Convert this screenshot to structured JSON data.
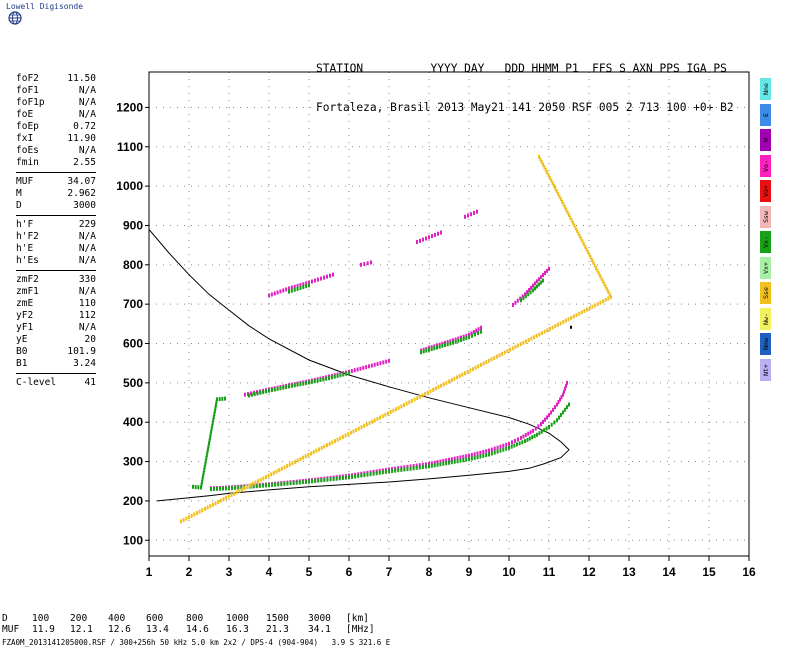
{
  "brand": {
    "name": "Lowell Digisonde",
    "icon": "globe-icon"
  },
  "header": {
    "line1": "STATION          YYYY DAY   DDD HHMM P1  FFS S AXN PPS IGA PS",
    "line2": "Fortaleza, Brasil 2013 May21 141 2050 RSF 005 2 713 100 +0+ B2"
  },
  "params": [
    {
      "label": "foF2",
      "value": "11.50"
    },
    {
      "label": "foF1",
      "value": "N/A"
    },
    {
      "label": "foF1p",
      "value": "N/A"
    },
    {
      "label": "foE",
      "value": "N/A"
    },
    {
      "label": "foEp",
      "value": "0.72"
    },
    {
      "label": "fxI",
      "value": "11.90"
    },
    {
      "label": "foEs",
      "value": "N/A"
    },
    {
      "label": "fmin",
      "value": "2.55"
    },
    {
      "sep": true
    },
    {
      "label": "MUF",
      "value": "34.07"
    },
    {
      "label": "M",
      "value": "2.962"
    },
    {
      "label": "D",
      "value": "3000"
    },
    {
      "sep": true
    },
    {
      "label": "h'F",
      "value": "229"
    },
    {
      "label": "h'F2",
      "value": "N/A"
    },
    {
      "label": "h'E",
      "value": "N/A"
    },
    {
      "label": "h'Es",
      "value": "N/A"
    },
    {
      "sep": true
    },
    {
      "label": "zmF2",
      "value": "330"
    },
    {
      "label": "zmF1",
      "value": "N/A"
    },
    {
      "label": "zmE",
      "value": "110"
    },
    {
      "label": "yF2",
      "value": "112"
    },
    {
      "label": "yF1",
      "value": "N/A"
    },
    {
      "label": "yE",
      "value": "20"
    },
    {
      "label": "B0",
      "value": "101.9"
    },
    {
      "label": "B1",
      "value": "3.24"
    },
    {
      "sep": true
    },
    {
      "label": "C-level",
      "value": "41"
    }
  ],
  "legend": [
    {
      "label": "Nne",
      "color": "#66e6e6"
    },
    {
      "label": "E",
      "color": "#3c8ce8"
    },
    {
      "label": "W",
      "color": "#a000b0"
    },
    {
      "label": "Vo-",
      "color": "#ff20c0"
    },
    {
      "label": "Vo+",
      "color": "#e81010"
    },
    {
      "label": "Ssw",
      "color": "#f2b8b8"
    },
    {
      "label": "Vx-",
      "color": "#18a018"
    },
    {
      "label": "Vx+",
      "color": "#a8f0a8"
    },
    {
      "label": "Sse",
      "color": "#f0c020"
    },
    {
      "label": "Nw-",
      "color": "#f0f060"
    },
    {
      "label": "Nnw",
      "color": "#2060c0"
    },
    {
      "label": "Nt+",
      "color": "#b8b0f0"
    }
  ],
  "muf_table": {
    "d_label": "D",
    "d_values": [
      "100",
      "200",
      "400",
      "600",
      "800",
      "1000",
      "1500",
      "3000"
    ],
    "d_unit": "[km]",
    "muf_label": "MUF",
    "muf_values": [
      "11.9",
      "12.1",
      "12.6",
      "13.4",
      "14.6",
      "16.3",
      "21.3",
      "34.1"
    ],
    "muf_unit": "[MHz]"
  },
  "footer": "FZA0M_2013141205000.RSF / 300+256h 50 kHz 5.0 km 2x2 / DPS-4 (904-904)   3.9 S 321.6 E",
  "chart_data": {
    "type": "scatter",
    "xlim": [
      1,
      16
    ],
    "ylim": [
      60,
      1290
    ],
    "x_ticks": [
      1,
      2,
      3,
      4,
      5,
      6,
      7,
      8,
      9,
      10,
      11,
      12,
      13,
      14,
      15,
      16
    ],
    "y_ticks": [
      100,
      200,
      300,
      400,
      500,
      600,
      700,
      800,
      900,
      1000,
      1100,
      1200
    ],
    "grid": true,
    "profile": {
      "points": [
        [
          1.0,
          890
        ],
        [
          1.5,
          830
        ],
        [
          2.0,
          775
        ],
        [
          2.5,
          725
        ],
        [
          3.0,
          685
        ],
        [
          3.5,
          645
        ],
        [
          4.0,
          612
        ],
        [
          5.0,
          558
        ],
        [
          6.0,
          520
        ],
        [
          7.0,
          490
        ],
        [
          8.0,
          462
        ],
        [
          9.0,
          437
        ],
        [
          10.0,
          412
        ],
        [
          10.5,
          395
        ],
        [
          11.0,
          372
        ],
        [
          11.3,
          350
        ],
        [
          11.5,
          330
        ],
        [
          11.3,
          310
        ],
        [
          10.9,
          295
        ],
        [
          10.5,
          283
        ],
        [
          10.0,
          275
        ],
        [
          9.0,
          265
        ],
        [
          8.0,
          256
        ],
        [
          7.0,
          248
        ],
        [
          6.0,
          242
        ],
        [
          5.0,
          236
        ],
        [
          4.0,
          228
        ],
        [
          3.0,
          219
        ],
        [
          2.5,
          213
        ],
        [
          2.0,
          208
        ],
        [
          1.5,
          203
        ],
        [
          1.2,
          200
        ]
      ],
      "color": "#000000"
    },
    "traces": [
      {
        "name": "O",
        "color": "#e020c0",
        "points": [
          [
            2.55,
            232
          ],
          [
            3.0,
            234
          ],
          [
            4.0,
            242
          ],
          [
            5.0,
            252
          ],
          [
            6.0,
            264
          ],
          [
            7.0,
            280
          ],
          [
            8.0,
            294
          ],
          [
            9.0,
            315
          ],
          [
            9.5,
            328
          ],
          [
            10.0,
            345
          ],
          [
            10.3,
            360
          ],
          [
            10.6,
            378
          ],
          [
            10.8,
            395
          ],
          [
            11.0,
            418
          ],
          [
            11.2,
            445
          ],
          [
            11.35,
            470
          ],
          [
            11.45,
            500
          ]
        ]
      },
      {
        "name": "X",
        "color": "#18a018",
        "points": [
          [
            2.55,
            230
          ],
          [
            3.0,
            232
          ],
          [
            4.0,
            240
          ],
          [
            5.0,
            249
          ],
          [
            6.0,
            260
          ],
          [
            7.0,
            275
          ],
          [
            8.0,
            288
          ],
          [
            9.0,
            306
          ],
          [
            9.5,
            318
          ],
          [
            10.0,
            335
          ],
          [
            10.4,
            352
          ],
          [
            10.7,
            368
          ],
          [
            11.0,
            388
          ],
          [
            11.2,
            405
          ],
          [
            11.35,
            425
          ],
          [
            11.5,
            445
          ]
        ]
      },
      {
        "name": "O",
        "color": "#e020c0",
        "points": [
          [
            3.4,
            470
          ],
          [
            4.0,
            483
          ],
          [
            4.5,
            494
          ],
          [
            5.0,
            504
          ],
          [
            5.5,
            516
          ],
          [
            6.0,
            528
          ],
          [
            6.5,
            542
          ],
          [
            7.0,
            556
          ]
        ]
      },
      {
        "name": "X",
        "color": "#18a018",
        "points": [
          [
            3.5,
            468
          ],
          [
            4.0,
            480
          ],
          [
            4.5,
            491
          ],
          [
            5.0,
            501
          ],
          [
            5.5,
            512
          ],
          [
            6.0,
            525
          ]
        ]
      },
      {
        "name": "O",
        "color": "#e020c0",
        "points": [
          [
            7.8,
            582
          ],
          [
            8.2,
            595
          ],
          [
            8.6,
            608
          ],
          [
            9.0,
            622
          ],
          [
            9.3,
            640
          ]
        ]
      },
      {
        "name": "X",
        "color": "#18a018",
        "points": [
          [
            7.8,
            578
          ],
          [
            8.2,
            590
          ],
          [
            8.6,
            602
          ],
          [
            9.0,
            616
          ],
          [
            9.3,
            630
          ]
        ]
      },
      {
        "name": "O",
        "color": "#e020c0",
        "points": [
          [
            4.0,
            722
          ],
          [
            4.5,
            740
          ],
          [
            5.0,
            755
          ],
          [
            5.6,
            775
          ]
        ]
      },
      {
        "name": "X",
        "color": "#18a018",
        "points": [
          [
            4.5,
            732
          ],
          [
            5.0,
            748
          ]
        ]
      },
      {
        "name": "O",
        "color": "#e020c0",
        "points": [
          [
            10.1,
            698
          ],
          [
            10.4,
            725
          ],
          [
            10.7,
            758
          ],
          [
            11.0,
            790
          ]
        ]
      },
      {
        "name": "X",
        "color": "#18a018",
        "points": [
          [
            10.3,
            710
          ],
          [
            10.6,
            735
          ],
          [
            10.85,
            760
          ]
        ]
      },
      {
        "name": "O",
        "color": "#e020c0",
        "points": [
          [
            6.3,
            800
          ],
          [
            6.55,
            806
          ]
        ]
      },
      {
        "name": "O",
        "color": "#e020c0",
        "points": [
          [
            7.7,
            858
          ],
          [
            8.0,
            870
          ],
          [
            8.3,
            882
          ]
        ]
      },
      {
        "name": "O",
        "color": "#e020c0",
        "points": [
          [
            8.9,
            922
          ],
          [
            9.2,
            935
          ]
        ]
      },
      {
        "name": "X",
        "color": "#18a018",
        "points": [
          [
            2.1,
            236
          ],
          [
            2.3,
            234
          ],
          [
            2.7,
            458
          ],
          [
            2.9,
            460
          ]
        ]
      },
      {
        "name": "Sse",
        "color": "#f0c020",
        "points": [
          [
            10.75,
            1075
          ],
          [
            12.55,
            718
          ],
          [
            1.8,
            148
          ]
        ]
      },
      {
        "name": "Nt",
        "color": "#000000",
        "points": [
          [
            11.55,
            640
          ]
        ]
      }
    ]
  }
}
